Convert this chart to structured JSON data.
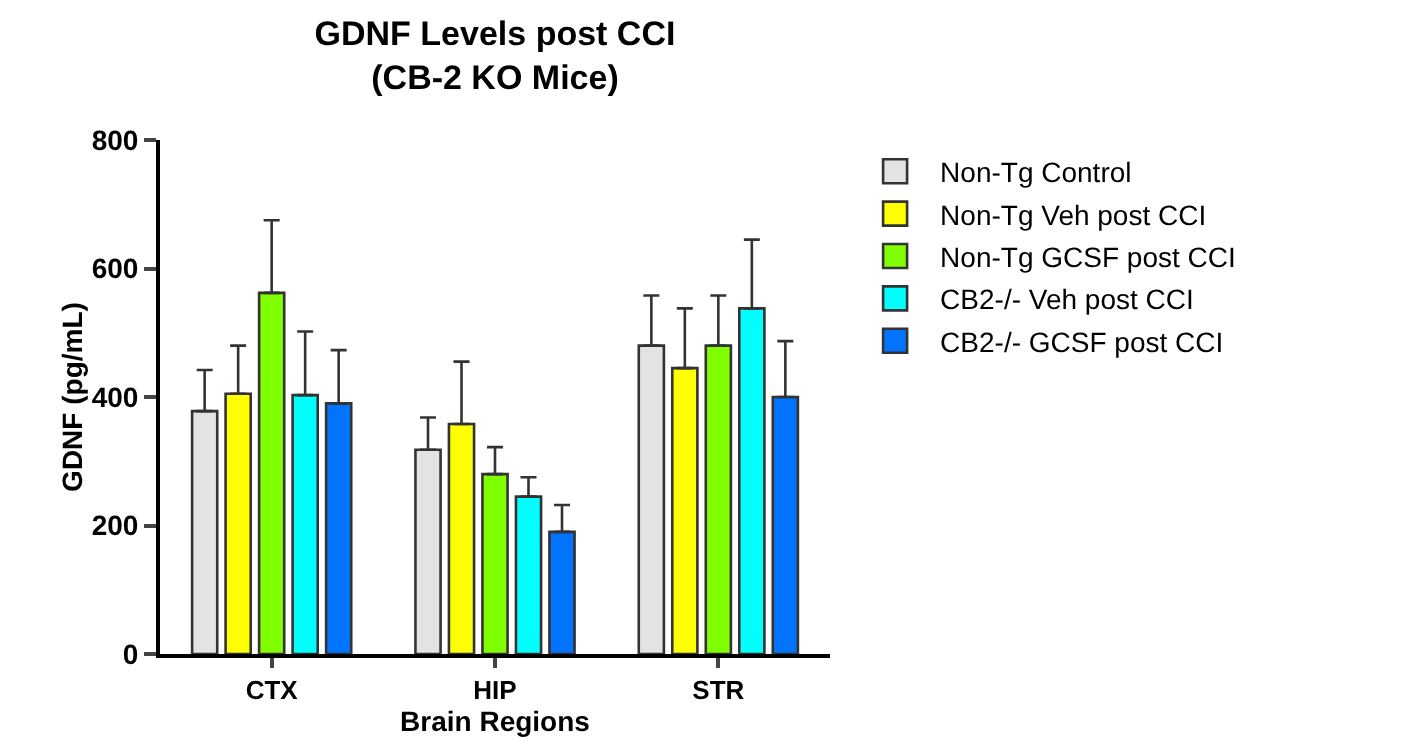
{
  "chart_data": {
    "type": "bar",
    "title": "GDNF Levels post CCI\n(CB-2 KO Mice)",
    "xlabel": "Brain Regions",
    "ylabel": "GDNF (pg/mL)",
    "categories": [
      "CTX",
      "HIP",
      "STR"
    ],
    "series": [
      {
        "name": "Non-Tg Control",
        "color": "#e3e3e3",
        "values": [
          378,
          318,
          480
        ],
        "errors": [
          [
            378,
            442
          ],
          [
            318,
            368
          ],
          [
            480,
            558
          ]
        ]
      },
      {
        "name": "Non-Tg Veh post CCI",
        "color": "#ffff00",
        "values": [
          405,
          358,
          445
        ],
        "errors": [
          [
            405,
            480
          ],
          [
            358,
            455
          ],
          [
            445,
            538
          ]
        ]
      },
      {
        "name": "Non-Tg GCSF post CCI",
        "color": "#7fff00",
        "values": [
          562,
          280,
          480
        ],
        "errors": [
          [
            562,
            675
          ],
          [
            280,
            322
          ],
          [
            480,
            558
          ]
        ]
      },
      {
        "name": "CB2-/- Veh post CCI",
        "color": "#00ffff",
        "values": [
          403,
          245,
          538
        ],
        "errors": [
          [
            403,
            502
          ],
          [
            245,
            275
          ],
          [
            538,
            645
          ]
        ]
      },
      {
        "name": "CB2-/- GCSF post CCI",
        "color": "#0073ff",
        "values": [
          390,
          190,
          400
        ],
        "errors": [
          [
            390,
            473
          ],
          [
            190,
            232
          ],
          [
            400,
            487
          ]
        ]
      }
    ],
    "ylim": [
      0,
      800
    ],
    "yticks": [
      0,
      200,
      400,
      600,
      800
    ],
    "grid": false,
    "legend": "right"
  }
}
